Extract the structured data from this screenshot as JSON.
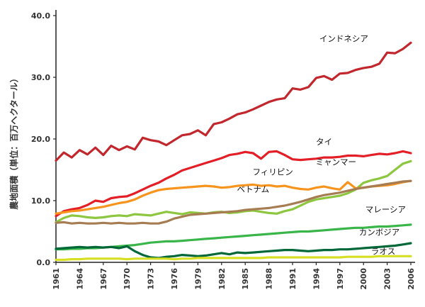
{
  "chart_data": {
    "type": "line",
    "title": "",
    "xlabel": "",
    "ylabel": "農地面積（単位：百万ヘクタール）",
    "xlim": [
      1961,
      2006
    ],
    "ylim": [
      0,
      40
    ],
    "x_ticks": [
      "1961",
      "1964",
      "1967",
      "1970",
      "1973",
      "1976",
      "1979",
      "1982",
      "1985",
      "1988",
      "1991",
      "1994",
      "1997",
      "2000",
      "2003",
      "2006"
    ],
    "y_ticks": [
      "0.0",
      "10.0",
      "20.0",
      "30.0",
      "40.0"
    ],
    "series": [
      {
        "name": "インドネシア",
        "color": "#c1272d",
        "x": [
          1961,
          1962,
          1963,
          1964,
          1965,
          1966,
          1967,
          1968,
          1969,
          1970,
          1971,
          1972,
          1973,
          1974,
          1975,
          1976,
          1977,
          1978,
          1979,
          1980,
          1981,
          1982,
          1983,
          1984,
          1985,
          1986,
          1987,
          1988,
          1989,
          1990,
          1991,
          1992,
          1993,
          1994,
          1995,
          1996,
          1997,
          1998,
          1999,
          2000,
          2001,
          2002,
          2003,
          2004,
          2005,
          2006
        ],
        "values": [
          16.5,
          17.8,
          17.0,
          18.2,
          17.5,
          18.6,
          17.4,
          18.9,
          18.2,
          18.8,
          18.3,
          20.2,
          19.8,
          19.6,
          19.0,
          19.8,
          20.6,
          20.8,
          21.4,
          20.6,
          22.4,
          22.7,
          23.3,
          24.0,
          24.3,
          24.8,
          25.4,
          26.0,
          26.4,
          26.6,
          28.2,
          28.0,
          28.4,
          29.9,
          30.2,
          29.6,
          30.6,
          30.7,
          31.2,
          31.5,
          31.7,
          32.2,
          34.0,
          33.9,
          34.6,
          35.6
        ]
      },
      {
        "name": "タイ",
        "color": "#e31e26",
        "x": [
          1961,
          1962,
          1963,
          1964,
          1965,
          1966,
          1967,
          1968,
          1969,
          1970,
          1971,
          1972,
          1973,
          1974,
          1975,
          1976,
          1977,
          1978,
          1979,
          1980,
          1981,
          1982,
          1983,
          1984,
          1985,
          1986,
          1987,
          1988,
          1989,
          1990,
          1991,
          1992,
          1993,
          1994,
          1995,
          1996,
          1997,
          1998,
          1999,
          2000,
          2001,
          2002,
          2003,
          2004,
          2005,
          2006
        ],
        "values": [
          7.5,
          8.3,
          8.6,
          8.8,
          9.3,
          10.0,
          9.8,
          10.4,
          10.6,
          10.7,
          11.2,
          11.8,
          12.4,
          12.9,
          13.6,
          14.2,
          14.9,
          15.3,
          15.7,
          16.1,
          16.5,
          16.9,
          17.4,
          17.6,
          17.9,
          17.7,
          16.8,
          17.9,
          18.0,
          17.4,
          16.7,
          16.6,
          16.7,
          16.8,
          17.0,
          17.0,
          17.1,
          17.3,
          17.3,
          17.2,
          17.4,
          17.6,
          17.5,
          17.7,
          18.0,
          17.7
        ]
      },
      {
        "name": "ミャンマー",
        "color": "#8dc63f",
        "x": [
          1961,
          1962,
          1963,
          1964,
          1965,
          1966,
          1967,
          1968,
          1969,
          1970,
          1971,
          1972,
          1973,
          1974,
          1975,
          1976,
          1977,
          1978,
          1979,
          1980,
          1981,
          1982,
          1983,
          1984,
          1985,
          1986,
          1987,
          1988,
          1989,
          1990,
          1991,
          1992,
          1993,
          1994,
          1995,
          1996,
          1997,
          1998,
          1999,
          2000,
          2001,
          2002,
          2003,
          2004,
          2005,
          2006
        ],
        "values": [
          6.5,
          7.2,
          7.6,
          7.5,
          7.3,
          7.2,
          7.3,
          7.5,
          7.6,
          7.5,
          7.8,
          7.7,
          7.6,
          7.9,
          8.2,
          8.0,
          7.8,
          8.1,
          8.0,
          7.9,
          8.1,
          8.2,
          8.0,
          8.1,
          8.3,
          8.4,
          8.2,
          8.0,
          7.9,
          8.3,
          8.6,
          9.2,
          9.8,
          10.2,
          10.4,
          10.6,
          10.8,
          11.2,
          11.8,
          12.9,
          13.3,
          13.6,
          14.0,
          15.0,
          16.0,
          16.4
        ]
      },
      {
        "name": "フィリピン",
        "color": "#f7941d",
        "x": [
          1961,
          1962,
          1963,
          1964,
          1965,
          1966,
          1967,
          1968,
          1969,
          1970,
          1971,
          1972,
          1973,
          1974,
          1975,
          1976,
          1977,
          1978,
          1979,
          1980,
          1981,
          1982,
          1983,
          1984,
          1985,
          1986,
          1987,
          1988,
          1989,
          1990,
          1991,
          1992,
          1993,
          1994,
          1995,
          1996,
          1997,
          1998,
          1999,
          2000,
          2001,
          2002,
          2003,
          2004,
          2005,
          2006
        ],
        "values": [
          7.9,
          8.1,
          8.3,
          8.4,
          8.6,
          8.8,
          9.0,
          9.3,
          9.6,
          9.8,
          10.2,
          10.8,
          11.3,
          11.7,
          11.9,
          12.0,
          12.1,
          12.2,
          12.3,
          12.4,
          12.3,
          12.1,
          12.2,
          12.4,
          12.5,
          12.6,
          12.4,
          12.5,
          12.3,
          12.4,
          12.1,
          11.9,
          11.8,
          12.1,
          12.3,
          12.0,
          11.8,
          13.0,
          12.0,
          12.1,
          12.3,
          12.4,
          12.5,
          12.7,
          13.0,
          13.2
        ]
      },
      {
        "name": "ベトナム",
        "color": "#a67c52",
        "x": [
          1961,
          1962,
          1963,
          1964,
          1965,
          1966,
          1967,
          1968,
          1969,
          1970,
          1971,
          1972,
          1973,
          1974,
          1975,
          1976,
          1977,
          1978,
          1979,
          1980,
          1981,
          1982,
          1983,
          1984,
          1985,
          1986,
          1987,
          1988,
          1989,
          1990,
          1991,
          1992,
          1993,
          1994,
          1995,
          1996,
          1997,
          1998,
          1999,
          2000,
          2001,
          2002,
          2003,
          2004,
          2005,
          2006
        ],
        "values": [
          6.4,
          6.5,
          6.3,
          6.4,
          6.3,
          6.3,
          6.4,
          6.3,
          6.4,
          6.3,
          6.3,
          6.4,
          6.3,
          6.3,
          6.6,
          7.1,
          7.4,
          7.7,
          7.8,
          7.9,
          8.0,
          8.1,
          8.2,
          8.3,
          8.5,
          8.6,
          8.7,
          8.8,
          9.0,
          9.2,
          9.5,
          9.8,
          10.2,
          10.6,
          10.9,
          11.1,
          11.3,
          11.6,
          11.9,
          12.1,
          12.3,
          12.5,
          12.7,
          12.9,
          13.1,
          13.2
        ]
      },
      {
        "name": "マレーシア",
        "color": "#39b54a",
        "x": [
          1961,
          1962,
          1963,
          1964,
          1965,
          1966,
          1967,
          1968,
          1969,
          1970,
          1971,
          1972,
          1973,
          1974,
          1975,
          1976,
          1977,
          1978,
          1979,
          1980,
          1981,
          1982,
          1983,
          1984,
          1985,
          1986,
          1987,
          1988,
          1989,
          1990,
          1991,
          1992,
          1993,
          1994,
          1995,
          1996,
          1997,
          1998,
          1999,
          2000,
          2001,
          2002,
          2003,
          2004,
          2005,
          2006
        ],
        "values": [
          2.1,
          2.1,
          2.2,
          2.2,
          2.3,
          2.3,
          2.4,
          2.5,
          2.6,
          2.7,
          2.8,
          3.0,
          3.2,
          3.3,
          3.4,
          3.4,
          3.5,
          3.6,
          3.7,
          3.8,
          3.9,
          4.0,
          4.1,
          4.2,
          4.3,
          4.4,
          4.5,
          4.6,
          4.7,
          4.8,
          4.9,
          5.0,
          5.0,
          5.1,
          5.2,
          5.3,
          5.4,
          5.5,
          5.6,
          5.6,
          5.7,
          5.8,
          5.8,
          5.9,
          6.0,
          6.1
        ]
      },
      {
        "name": "カンボジア",
        "color": "#006838",
        "x": [
          1961,
          1962,
          1963,
          1964,
          1965,
          1966,
          1967,
          1968,
          1969,
          1970,
          1971,
          1972,
          1973,
          1974,
          1975,
          1976,
          1977,
          1978,
          1979,
          1980,
          1981,
          1982,
          1983,
          1984,
          1985,
          1986,
          1987,
          1988,
          1989,
          1990,
          1991,
          1992,
          1993,
          1994,
          1995,
          1996,
          1997,
          1998,
          1999,
          2000,
          2001,
          2002,
          2003,
          2004,
          2005,
          2006
        ],
        "values": [
          2.2,
          2.3,
          2.4,
          2.5,
          2.4,
          2.5,
          2.4,
          2.5,
          2.3,
          2.6,
          1.8,
          1.2,
          0.8,
          0.7,
          0.9,
          1.0,
          1.2,
          1.1,
          1.0,
          1.1,
          1.3,
          1.5,
          1.3,
          1.6,
          1.5,
          1.6,
          1.7,
          1.8,
          1.9,
          2.0,
          2.0,
          1.9,
          1.8,
          1.9,
          2.0,
          2.0,
          2.1,
          2.1,
          2.2,
          2.3,
          2.4,
          2.5,
          2.6,
          2.7,
          2.9,
          3.1
        ]
      },
      {
        "name": "ラオス",
        "color": "#d7df23",
        "x": [
          1961,
          1962,
          1963,
          1964,
          1965,
          1966,
          1967,
          1968,
          1969,
          1970,
          1971,
          1972,
          1973,
          1974,
          1975,
          1976,
          1977,
          1978,
          1979,
          1980,
          1981,
          1982,
          1983,
          1984,
          1985,
          1986,
          1987,
          1988,
          1989,
          1990,
          1991,
          1992,
          1993,
          1994,
          1995,
          1996,
          1997,
          1998,
          1999,
          2000,
          2001,
          2002,
          2003,
          2004,
          2005,
          2006
        ],
        "values": [
          0.4,
          0.4,
          0.5,
          0.5,
          0.6,
          0.6,
          0.6,
          0.6,
          0.6,
          0.5,
          0.6,
          0.6,
          0.6,
          0.6,
          0.6,
          0.5,
          0.6,
          0.6,
          0.7,
          0.7,
          0.7,
          0.7,
          0.7,
          0.7,
          0.7,
          0.7,
          0.7,
          0.8,
          0.8,
          0.8,
          0.8,
          0.8,
          0.8,
          0.8,
          0.8,
          0.8,
          0.8,
          0.9,
          0.9,
          0.9,
          0.9,
          1.0,
          1.0,
          1.0,
          1.0,
          1.0
        ]
      }
    ],
    "grid": false,
    "legend": "inline labels"
  }
}
